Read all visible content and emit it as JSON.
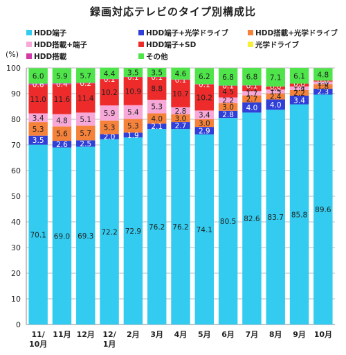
{
  "chart_data": {
    "type": "bar",
    "stacked": true,
    "title": "録画対応テレビのタイプ別構成比",
    "ylabel": "(%)",
    "ylim": [
      0,
      100
    ],
    "yticks": [
      "0",
      "10",
      "20",
      "30",
      "40",
      "50",
      "60",
      "70",
      "80",
      "90",
      "100"
    ],
    "grid": true,
    "legend_position": "top",
    "categories": [
      "11/\n10月",
      "11月",
      "12月",
      "12/\n1月",
      "2月",
      "3月",
      "4月",
      "5月",
      "6月",
      "7月",
      "8月",
      "9月",
      "10月"
    ],
    "series": [
      {
        "name": "HDD端子",
        "color": "#33ccf0",
        "values": [
          70.1,
          69.0,
          69.3,
          72.2,
          72.9,
          76.2,
          76.2,
          74.1,
          80.5,
          82.6,
          83.7,
          85.8,
          89.6
        ],
        "labels": [
          "70.1",
          "69.0",
          "69.3",
          "72.2",
          "72.9",
          "76.2",
          "76.2",
          "74.1",
          "80.5",
          "82.6",
          "83.7",
          "85.8",
          "89.6"
        ]
      },
      {
        "name": "HDD端子+光学ドライブ",
        "color": "#2f3fd8",
        "values": [
          3.5,
          2.6,
          2.5,
          2.0,
          1.9,
          2.1,
          2.7,
          2.9,
          2.8,
          4.0,
          4.0,
          3.4,
          2.3
        ],
        "labels": [
          "3.5",
          "2.6",
          "2.5",
          "2.0",
          "1.9",
          "2.1",
          "2.7",
          "2.9",
          "2.8",
          "4.0",
          "4.0",
          "3.4",
          "2.3"
        ]
      },
      {
        "name": "HDD搭載+光学ドライブ",
        "color": "#f5823a",
        "values": [
          5.3,
          5.6,
          5.7,
          5.3,
          5.3,
          4.0,
          3.0,
          3.0,
          3.0,
          2.7,
          2.4,
          2.2,
          1.8
        ],
        "labels": [
          "5.3",
          "5.6",
          "5.7",
          "5.3",
          "5.3",
          "4.0",
          "3.0",
          "3.0",
          "3.0",
          "2.7",
          "2.4",
          "2.2",
          "1.8"
        ]
      },
      {
        "name": "HDD搭載+端子",
        "color": "#f7a8d8",
        "values": [
          3.4,
          4.8,
          5.1,
          5.9,
          5.4,
          5.3,
          2.8,
          3.4,
          2.2,
          1.7,
          1.5,
          1.4,
          1.0
        ],
        "labels": [
          "3.4",
          "4.8",
          "5.1",
          "5.9",
          "5.4",
          "5.3",
          "2.8",
          "3.4",
          "2.2",
          "1.7",
          "1.5",
          "1.4",
          "1.0"
        ]
      },
      {
        "name": "HDD端子+SD",
        "color": "#ee2b2b",
        "values": [
          11.0,
          11.6,
          11.4,
          10.2,
          10.9,
          8.8,
          10.7,
          10.2,
          4.5,
          2.1,
          1.2,
          1.1,
          0.4
        ],
        "labels": [
          "11.0",
          "11.6",
          "11.4",
          "10.2",
          "10.9",
          "8.8",
          "10.7",
          "10.2",
          "4.5",
          "2.1",
          "1.2",
          "1.1",
          "0.4"
        ]
      },
      {
        "name": "光学ドライブ",
        "color": "#f5ef3a",
        "values": [
          0,
          0,
          0,
          0,
          0,
          0,
          0,
          0,
          0,
          0,
          0,
          0,
          0
        ],
        "labels": [
          "",
          "",
          "",
          "",
          "",
          "",
          "",
          "",
          "",
          "",
          "",
          "",
          ""
        ]
      },
      {
        "name": "HDD搭載",
        "color": "#d33aa8",
        "values": [
          0.6,
          0.4,
          0.2,
          0.1,
          0.1,
          0.1,
          0.1,
          0.1,
          0.1,
          0.1,
          0.0,
          0.0,
          0.0
        ],
        "labels": [
          "0.6",
          "0.4",
          "0.2",
          "0.1",
          "0.1",
          "0.1",
          "0.1",
          "0.1",
          "0.1",
          "0.1",
          "0.0",
          "0.0",
          "0.0"
        ]
      },
      {
        "name": "その他",
        "color": "#4ee44a",
        "values": [
          6.0,
          5.9,
          5.7,
          4.4,
          3.5,
          3.5,
          4.6,
          6.2,
          6.8,
          6.8,
          7.1,
          6.1,
          4.8
        ],
        "labels": [
          "6.0",
          "5.9",
          "5.7",
          "4.4",
          "3.5",
          "3.5",
          "4.6",
          "6.2",
          "6.8",
          "6.8",
          "7.1",
          "6.1",
          "4.8"
        ]
      }
    ]
  }
}
